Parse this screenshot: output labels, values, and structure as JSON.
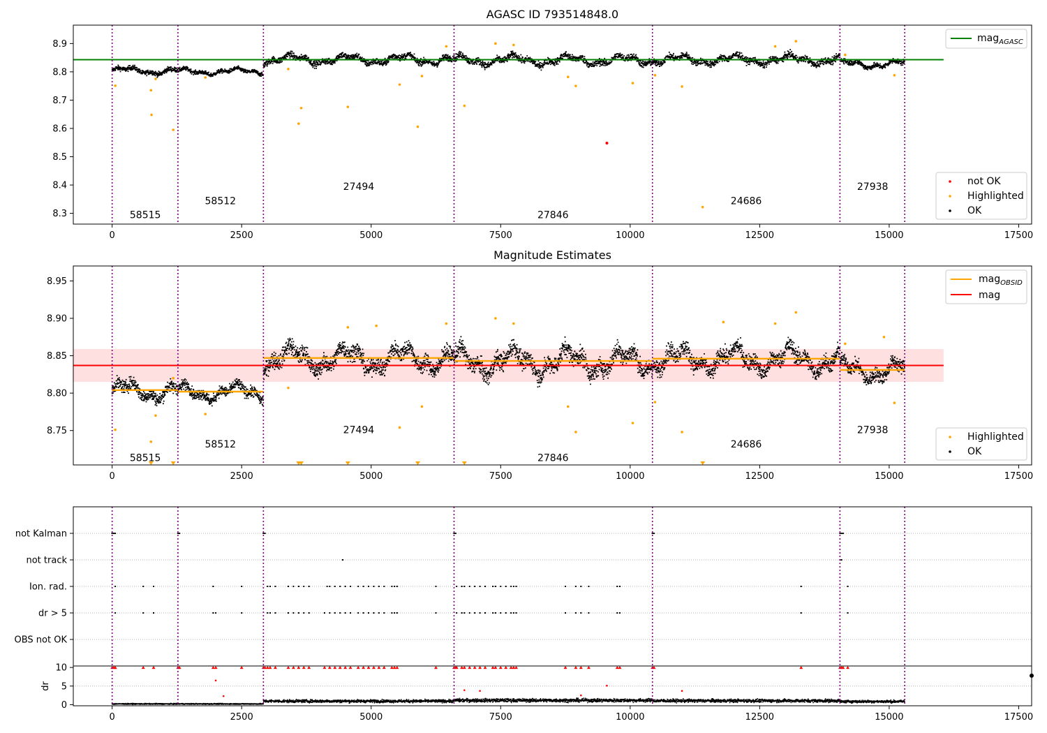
{
  "chart_data": [
    {
      "type": "scatter",
      "title": "AGASC ID 793514848.0",
      "xlim": [
        -750,
        17750
      ],
      "ylim": [
        8.262,
        8.965
      ],
      "x_ticks": [
        0,
        2500,
        5000,
        7500,
        10000,
        12500,
        15000,
        17500
      ],
      "x_tick_labels": [
        "0",
        "2500",
        "5000",
        "7500",
        "10000",
        "12500",
        "15000",
        "17500"
      ],
      "y_ticks": [
        8.3,
        8.4,
        8.5,
        8.6,
        8.7,
        8.8,
        8.9
      ],
      "y_tick_labels": [
        "8.3",
        "8.4",
        "8.5",
        "8.6",
        "8.7",
        "8.8",
        "8.9"
      ],
      "obs_boundaries": [
        0,
        1270,
        2920,
        6600,
        10430,
        14050,
        15300
      ],
      "obs_segments": [
        {
          "label": "58515",
          "x0": 0,
          "x1": 1270,
          "mean": 8.806,
          "spread": 0.012,
          "label_x": 640,
          "label_y": 8.295
        },
        {
          "label": "58512",
          "x0": 1270,
          "x1": 2920,
          "mean": 8.803,
          "spread": 0.01,
          "label_x": 2090,
          "label_y": 8.345
        },
        {
          "label": "27494",
          "x0": 2920,
          "x1": 6600,
          "mean": 8.846,
          "spread": 0.016,
          "label_x": 4760,
          "label_y": 8.395
        },
        {
          "label": "27846",
          "x0": 6600,
          "x1": 10430,
          "mean": 8.843,
          "spread": 0.017,
          "label_x": 8510,
          "label_y": 8.295
        },
        {
          "label": "24686",
          "x0": 10430,
          "x1": 14050,
          "mean": 8.845,
          "spread": 0.016,
          "label_x": 12240,
          "label_y": 8.345
        },
        {
          "label": "27938",
          "x0": 14050,
          "x1": 15300,
          "mean": 8.83,
          "spread": 0.013,
          "label_x": 14680,
          "label_y": 8.395
        }
      ],
      "mag_agasc": 8.843,
      "mag_agasc_xrange": [
        -750,
        16050
      ],
      "highlighted": [
        [
          60,
          8.751
        ],
        [
          750,
          8.735
        ],
        [
          760,
          8.648
        ],
        [
          840,
          8.775
        ],
        [
          1180,
          8.595
        ],
        [
          1800,
          8.78
        ],
        [
          3400,
          8.81
        ],
        [
          3600,
          8.617
        ],
        [
          3650,
          8.672
        ],
        [
          4550,
          8.676
        ],
        [
          5550,
          8.755
        ],
        [
          5900,
          8.606
        ],
        [
          5980,
          8.785
        ],
        [
          6450,
          8.89
        ],
        [
          6800,
          8.68
        ],
        [
          7400,
          8.9
        ],
        [
          7750,
          8.895
        ],
        [
          8800,
          8.782
        ],
        [
          8950,
          8.75
        ],
        [
          10050,
          8.76
        ],
        [
          10480,
          8.788
        ],
        [
          11000,
          8.748
        ],
        [
          11400,
          8.322
        ],
        [
          12800,
          8.89
        ],
        [
          13200,
          8.908
        ],
        [
          14150,
          8.86
        ],
        [
          15100,
          8.788
        ]
      ],
      "not_ok": [
        [
          9550,
          8.548
        ]
      ],
      "legend_upper": [
        "mag_AGASC"
      ],
      "legend_lower": [
        "not OK",
        "Highlighted",
        "OK"
      ],
      "colors": {
        "ok": "#000000",
        "highlighted": "#ffa500",
        "not_ok": "#ff0000",
        "agasc_line": "#008000",
        "boundary": "#800080"
      }
    },
    {
      "type": "scatter",
      "title": "Magnitude Estimates",
      "xlim": [
        -750,
        17750
      ],
      "ylim": [
        8.704,
        8.97
      ],
      "x_ticks": [
        0,
        2500,
        5000,
        7500,
        10000,
        12500,
        15000,
        17500
      ],
      "x_tick_labels": [
        "0",
        "2500",
        "5000",
        "7500",
        "10000",
        "12500",
        "15000",
        "17500"
      ],
      "y_ticks": [
        8.75,
        8.8,
        8.85,
        8.9,
        8.95
      ],
      "y_tick_labels": [
        "8.75",
        "8.80",
        "8.85",
        "8.90",
        "8.95"
      ],
      "obs_labels": [
        {
          "label": "58515",
          "x": 640,
          "y": 8.714
        },
        {
          "label": "58512",
          "x": 2090,
          "y": 8.732
        },
        {
          "label": "27494",
          "x": 4760,
          "y": 8.751
        },
        {
          "label": "27846",
          "x": 8510,
          "y": 8.714
        },
        {
          "label": "24686",
          "x": 12240,
          "y": 8.732
        },
        {
          "label": "27938",
          "x": 14680,
          "y": 8.751
        }
      ],
      "mag_obsid": [
        {
          "x0": 0,
          "x1": 1270,
          "value": 8.804
        },
        {
          "x0": 1270,
          "x1": 2920,
          "value": 8.802
        },
        {
          "x0": 2920,
          "x1": 6600,
          "value": 8.847
        },
        {
          "x0": 6600,
          "x1": 10430,
          "value": 8.843
        },
        {
          "x0": 10430,
          "x1": 14050,
          "value": 8.846
        },
        {
          "x0": 14050,
          "x1": 15300,
          "value": 8.831
        }
      ],
      "mag": 8.837,
      "mag_band": [
        8.815,
        8.859
      ],
      "mag_xrange": [
        -750,
        16050
      ],
      "highlighted": [
        [
          60,
          8.751
        ],
        [
          750,
          8.735
        ],
        [
          840,
          8.77
        ],
        [
          1180,
          8.82
        ],
        [
          1800,
          8.772
        ],
        [
          3400,
          8.807
        ],
        [
          4550,
          8.888
        ],
        [
          5100,
          8.89
        ],
        [
          5550,
          8.754
        ],
        [
          5980,
          8.782
        ],
        [
          6450,
          8.893
        ],
        [
          7400,
          8.9
        ],
        [
          7750,
          8.893
        ],
        [
          8800,
          8.782
        ],
        [
          8950,
          8.748
        ],
        [
          10050,
          8.76
        ],
        [
          10480,
          8.788
        ],
        [
          11000,
          8.748
        ],
        [
          11800,
          8.895
        ],
        [
          12800,
          8.893
        ],
        [
          13200,
          8.908
        ],
        [
          14150,
          8.866
        ],
        [
          14900,
          8.875
        ],
        [
          15100,
          8.787
        ]
      ],
      "below_axis_markers": [
        750,
        1180,
        3600,
        3650,
        4550,
        5900,
        6800,
        11400
      ],
      "legend_upper": [
        "mag_OBSID",
        "mag"
      ],
      "legend_lower": [
        "Highlighted",
        "OK"
      ],
      "colors": {
        "ok": "#000000",
        "highlighted": "#ffa500",
        "mag_line": "#ff0000",
        "obsid_line": "#ffa500",
        "band": "#ffe0e0"
      }
    },
    {
      "type": "scatter",
      "x_ticks": [
        0,
        2500,
        5000,
        7500,
        10000,
        12500,
        15000,
        17500
      ],
      "x_tick_labels": [
        "0",
        "2500",
        "5000",
        "7500",
        "10000",
        "12500",
        "15000",
        "17500"
      ],
      "flag_rows": [
        "not Kalman",
        "not track",
        "Ion. rad.",
        "dr > 5",
        "OBS not OK"
      ],
      "flag_points": {
        "not Kalman": [
          0,
          30,
          60,
          1270,
          1300,
          2920,
          2950,
          6600,
          6630,
          10430,
          10460,
          14050,
          14080,
          14110
        ],
        "not track": [
          4450,
          14050,
          14080
        ],
        "Ion. rad.": [
          60,
          600,
          800,
          1950,
          2500,
          3000,
          3050,
          3150,
          3400,
          3500,
          3600,
          3700,
          3800,
          4150,
          4200,
          4300,
          4400,
          4500,
          4600,
          4750,
          4850,
          4950,
          5050,
          5150,
          5250,
          5400,
          5450,
          5500,
          6250,
          6650,
          6750,
          6800,
          6900,
          7000,
          7100,
          7200,
          7350,
          7400,
          7500,
          7600,
          7700,
          7750,
          7800,
          8750,
          8950,
          9050,
          9200,
          9750,
          9800,
          13300,
          14200
        ],
        "dr > 5": [
          60,
          600,
          800,
          1950,
          2000,
          2500,
          3000,
          3050,
          3150,
          3400,
          3500,
          3600,
          3700,
          3800,
          4100,
          4200,
          4300,
          4400,
          4500,
          4600,
          4750,
          4850,
          4950,
          5050,
          5150,
          5250,
          5400,
          5450,
          5500,
          6250,
          6650,
          6750,
          6800,
          6900,
          7000,
          7100,
          7200,
          7350,
          7400,
          7500,
          7600,
          7700,
          7750,
          7800,
          8750,
          8950,
          9050,
          9200,
          9750,
          9800,
          13300,
          14200
        ],
        "OBS not OK": []
      },
      "dr_label": "dr",
      "dr_ylim": [
        -0.3,
        10.4
      ],
      "dr_y_ticks": [
        0,
        5,
        10
      ],
      "dr_y_tick_labels": [
        "0",
        "5",
        "10"
      ],
      "dr_segments": [
        {
          "x0": 0,
          "x1": 1270,
          "base": 0.35
        },
        {
          "x0": 1270,
          "x1": 2920,
          "base": 0.35
        },
        {
          "x0": 2920,
          "x1": 6600,
          "base": 1.1
        },
        {
          "x0": 6600,
          "x1": 10430,
          "base": 1.3
        },
        {
          "x0": 10430,
          "x1": 14050,
          "base": 1.2
        },
        {
          "x0": 14050,
          "x1": 15300,
          "base": 1.0
        }
      ],
      "dr_red_points": [
        [
          2000,
          6.5
        ],
        [
          2150,
          2.3
        ],
        [
          6800,
          3.9
        ],
        [
          7100,
          3.7
        ],
        [
          9050,
          2.5
        ],
        [
          9550,
          5.1
        ],
        [
          11000,
          3.7
        ]
      ],
      "colors": {
        "ok": "#000000",
        "flag": "#ff0000",
        "boundary": "#800080",
        "grid": "#b0b0b0"
      }
    }
  ]
}
